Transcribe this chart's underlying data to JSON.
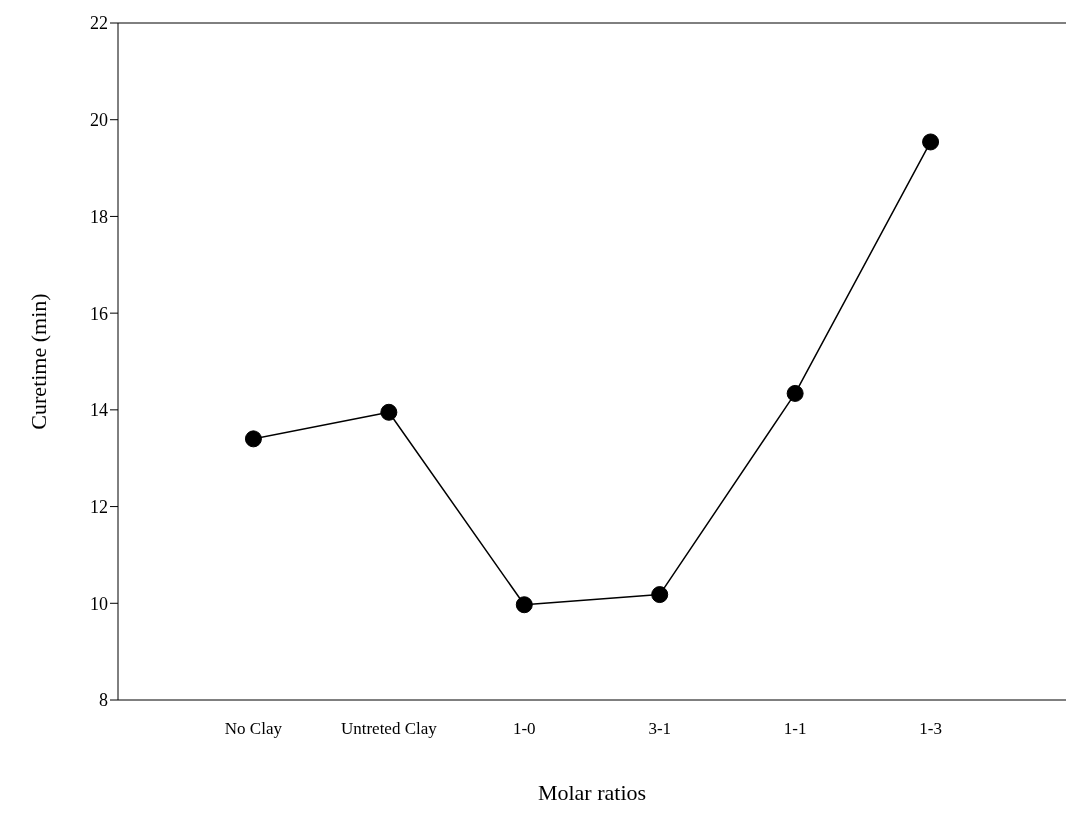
{
  "chart_data": {
    "type": "line",
    "xlabel": "Molar ratios",
    "ylabel": "Curetime (min)",
    "categories": [
      "No Clay",
      "Untreted Clay",
      "1-0",
      "3-1",
      "1-1",
      "1-3"
    ],
    "values": [
      13.4,
      13.95,
      9.97,
      10.18,
      14.34,
      19.54
    ],
    "color": "#000000",
    "marker": "circle",
    "line_style": "solid",
    "grid": false,
    "legend": false,
    "ylim": [
      8,
      22
    ],
    "yticks": [
      8,
      10,
      12,
      14,
      16,
      18,
      20,
      22
    ]
  }
}
